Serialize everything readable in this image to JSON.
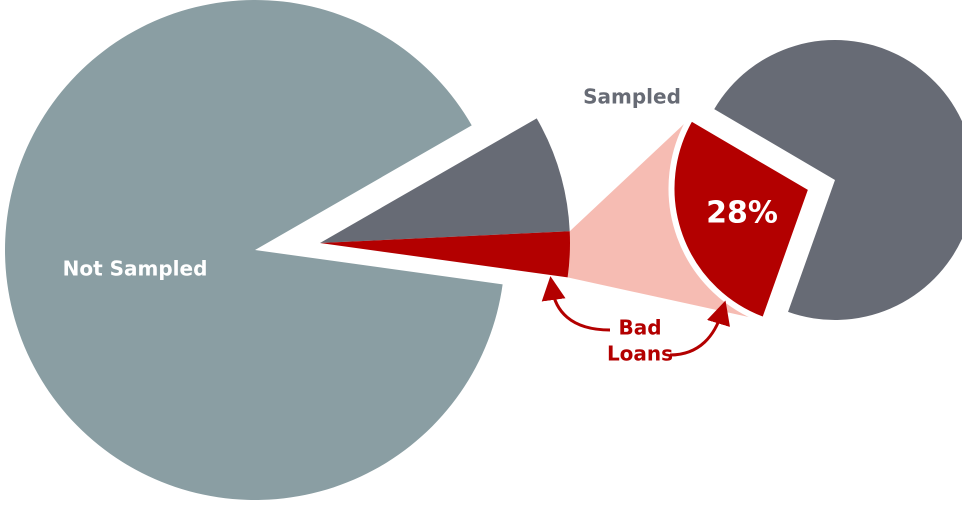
{
  "chart_data": {
    "type": "pie-of-pie",
    "categories": [
      "Not Sampled",
      "Sampled"
    ],
    "values": [
      89.5,
      10.5
    ],
    "colors": [
      "#8a9ea3",
      "#676b75"
    ],
    "secondary": {
      "categories": [
        null,
        null
      ],
      "values": [
        28,
        72
      ],
      "value_labels": [
        "28%",
        null
      ],
      "colors": [
        "#b30000",
        "#676b75"
      ]
    },
    "annotation": [
      "Bad",
      "Loans"
    ]
  }
}
